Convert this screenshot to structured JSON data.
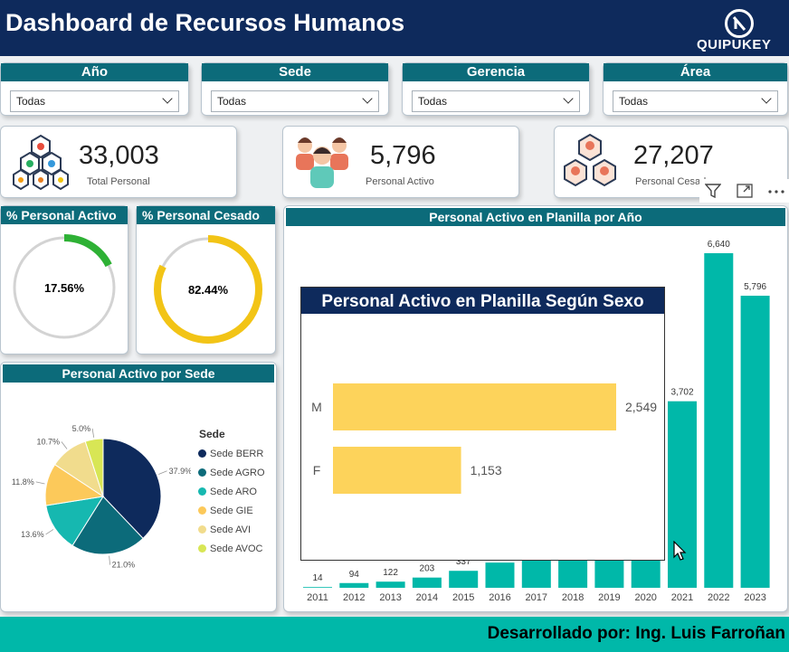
{
  "header": {
    "title": "Dashboard de Recursos Humanos",
    "logo_text": "QUIPUKEY"
  },
  "slicers": [
    {
      "label": "Año",
      "value": "Todas"
    },
    {
      "label": "Sede",
      "value": "Todas"
    },
    {
      "label": "Gerencia",
      "value": "Todas"
    },
    {
      "label": "Área",
      "value": "Todas"
    }
  ],
  "kpis": {
    "total": {
      "value": "33,003",
      "label": "Total Personal"
    },
    "activo": {
      "value": "5,796",
      "label": "Personal Activo"
    },
    "cesado": {
      "value": "27,207",
      "label": "Personal Cesad"
    }
  },
  "gauges": {
    "activo": {
      "title": "% Personal Activo",
      "label": "17.56%",
      "fraction": 0.1756,
      "color": "#2eb135"
    },
    "cesado": {
      "title": "% Personal Cesado",
      "label": "82.44%",
      "fraction": 0.8244,
      "color": "#f2c416"
    }
  },
  "pie_title": "Personal Activo por Sede",
  "bar_title": "Personal Activo en Planilla por Año",
  "popup_title": "Personal Activo en Planilla Según Sexo",
  "footer": "Desarrollado por: Ing. Luis Farroñan",
  "colors": {
    "header": "#0e2a5c",
    "teal": "#0c6b7a",
    "bar": "#00b8a9",
    "footer": "#00b8a9"
  },
  "chart_data": [
    {
      "type": "bar",
      "title": "Personal Activo en Planilla por Año",
      "categories": [
        "2011",
        "2012",
        "2013",
        "2014",
        "2015",
        "2016",
        "2017",
        "2018",
        "2019",
        "2020",
        "2021",
        "2022",
        "2023"
      ],
      "values": [
        14,
        94,
        122,
        203,
        337,
        500,
        640,
        700,
        700,
        700,
        3702,
        6640,
        5796
      ],
      "value_labels": [
        "14",
        "94",
        "122",
        "203",
        "337",
        "",
        "",
        "",
        "",
        "",
        "3,702",
        "6,640",
        "5,796"
      ]
    },
    {
      "type": "pie",
      "title": "Personal Activo por Sede",
      "legend_title": "Sede",
      "legend_position": "right",
      "categories": [
        "Sede BERR",
        "Sede AGRO",
        "Sede ARO",
        "Sede GIE",
        "Sede AVI",
        "Sede AVOC"
      ],
      "values": [
        37.9,
        21.0,
        13.6,
        11.8,
        10.7,
        5.0
      ],
      "labels": [
        "37.9%",
        "21.0%",
        "13.6%",
        "11.8%",
        "10.7%",
        "5.0%"
      ],
      "colors": [
        "#0e2a5c",
        "#0c6b7a",
        "#16b8b0",
        "#fcc95a",
        "#f1dc8d",
        "#d8e655"
      ]
    },
    {
      "type": "bar",
      "orientation": "horizontal",
      "title": "Personal Activo en Planilla Según Sexo",
      "categories": [
        "M",
        "F"
      ],
      "values": [
        2549,
        1153
      ],
      "value_labels": [
        "2,549",
        "1,153"
      ]
    }
  ]
}
